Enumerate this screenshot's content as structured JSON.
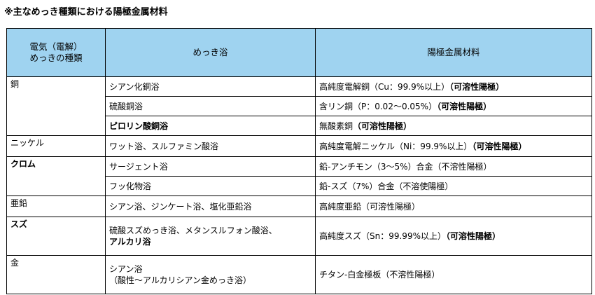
{
  "title": "※主なめっき種類における陽極金属材料",
  "headers": {
    "type_line1": "電気（電解）",
    "type_line2": "めっきの種類",
    "bath": "めっき浴",
    "anode": "陽極金属材料"
  },
  "rows": [
    {
      "metal": "銅",
      "entries": [
        {
          "bath": "シアン化銅浴",
          "anode": "高純度電解銅（Cu：99.9%以上）",
          "note": "（可溶性陽極）"
        },
        {
          "bath": "硫酸銅浴",
          "anode": "含リン銅（P：0.02～0.05%）",
          "note": "（可溶性陽極）"
        },
        {
          "bath": "ピロリン酸銅浴",
          "anode": "無酸素銅",
          "note": "（可溶性陽極）"
        }
      ]
    },
    {
      "metal": "ニッケル",
      "entries": [
        {
          "bath": "ワット浴、スルファミン酸浴",
          "anode": "高純度電解ニッケル（Ni：99.9%以上）",
          "note": "（可溶性陽極）"
        }
      ]
    },
    {
      "metal": "クロム",
      "entries": [
        {
          "bath": "サージェント浴",
          "anode": "鉛‐アンチモン（3～5%）合金",
          "note": "（不溶性陽極）"
        },
        {
          "bath": "フッ化物浴",
          "anode": "鉛‐スズ（7%）合金",
          "note": "（不溶使陽極）"
        }
      ]
    },
    {
      "metal": "亜鉛",
      "entries": [
        {
          "bath": "シアン浴、ジンケート浴、塩化亜鉛浴",
          "anode": "高純度亜鉛",
          "note": "（可溶性陽極）"
        }
      ]
    },
    {
      "metal": "スズ",
      "entries": [
        {
          "bath_line1": "硫酸スズめっき浴、メタンスルフォン酸浴、",
          "bath_line2": "アルカリ浴",
          "anode": "高純度スズ（Sn：99.99%以上）",
          "note": "（可溶性陽極）"
        }
      ]
    },
    {
      "metal": "金",
      "entries": [
        {
          "bath_line1": "シアン浴",
          "bath_line2": "（酸性～アルカリシアン金めっき浴）",
          "anode": "チタン‐白金極板",
          "note": "（不溶性陽極）"
        }
      ]
    }
  ]
}
